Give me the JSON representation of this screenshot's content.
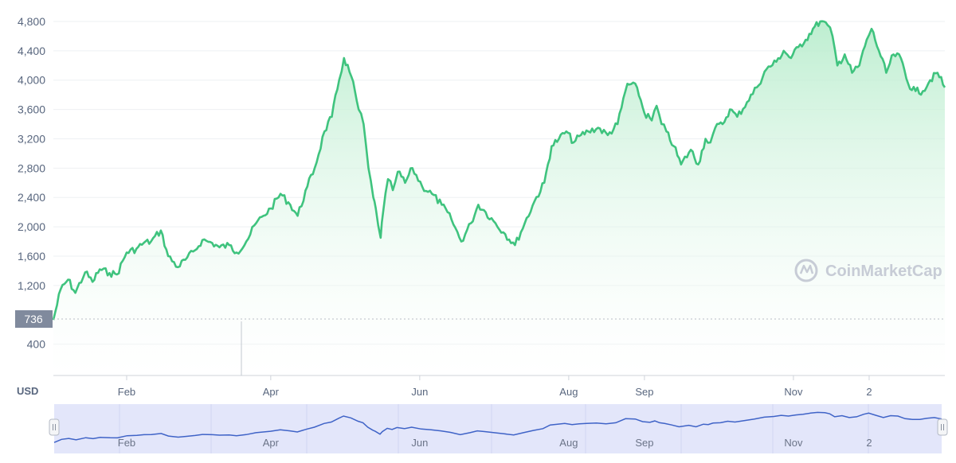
{
  "watermark": "CoinMarketCap",
  "unit_label": "USD",
  "current_badge": "736",
  "colors": {
    "line": "#3fc37e",
    "fill_top": "#b6eccb",
    "grid": "#eef0f3",
    "axis_text": "#58667e",
    "navigator_bg": "#e3e6fa",
    "navigator_line": "#3f63c7"
  },
  "chart_data": {
    "type": "area",
    "title": "",
    "xlabel": "",
    "ylabel": "USD",
    "ylim": [
      0,
      5000
    ],
    "yticks": [
      "400",
      "1,200",
      "1,600",
      "2,000",
      "2,400",
      "2,800",
      "3,200",
      "3,600",
      "4,000",
      "4,400",
      "4,800"
    ],
    "ytick_values": [
      400,
      1200,
      1600,
      2000,
      2400,
      2800,
      3200,
      3600,
      4000,
      4400,
      4800
    ],
    "xticks": [
      "Feb",
      "Apr",
      "Jun",
      "Aug",
      "Sep",
      "Nov",
      "2"
    ],
    "xtick_days": [
      31,
      90,
      151,
      212,
      243,
      304,
      335
    ],
    "x_range_days": [
      1,
      366
    ],
    "series": [
      {
        "x": [
          1,
          4,
          7,
          10,
          14,
          17,
          20,
          24,
          27,
          31,
          35,
          38,
          41,
          45,
          48,
          52,
          55,
          59,
          62,
          66,
          69,
          73,
          76,
          80,
          84,
          87,
          90,
          94,
          98,
          101,
          105,
          108,
          112,
          115,
          118,
          120,
          123,
          126,
          128,
          130,
          132,
          133,
          135,
          136,
          138,
          140,
          142,
          145,
          148,
          152,
          156,
          160,
          164,
          168,
          172,
          175,
          178,
          182,
          186,
          190,
          194,
          198,
          202,
          205,
          208,
          211,
          214,
          217,
          220,
          224,
          228,
          232,
          236,
          240,
          243,
          246,
          248,
          250,
          252,
          255,
          258,
          262,
          265,
          268,
          270,
          272,
          275,
          278,
          281,
          285,
          289,
          293,
          297,
          300,
          303,
          306,
          309,
          312,
          315,
          318,
          320,
          322,
          325,
          328,
          331,
          334,
          336,
          339,
          342,
          345,
          348,
          351,
          354,
          357,
          360,
          363,
          366
        ],
        "values": [
          730,
          1150,
          1280,
          1100,
          1380,
          1250,
          1420,
          1370,
          1350,
          1650,
          1700,
          1780,
          1800,
          1950,
          1600,
          1450,
          1550,
          1680,
          1820,
          1780,
          1720,
          1750,
          1650,
          1800,
          2050,
          2150,
          2250,
          2450,
          2300,
          2150,
          2550,
          2800,
          3300,
          3500,
          4000,
          4300,
          4050,
          3600,
          3400,
          2800,
          2400,
          2250,
          1850,
          2200,
          2650,
          2500,
          2750,
          2600,
          2800,
          2550,
          2450,
          2300,
          2100,
          1800,
          2050,
          2300,
          2200,
          2050,
          1900,
          1750,
          2050,
          2350,
          2600,
          3100,
          3200,
          3300,
          3150,
          3250,
          3300,
          3350,
          3250,
          3400,
          3950,
          3900,
          3550,
          3450,
          3650,
          3400,
          3300,
          3100,
          2850,
          3050,
          2850,
          3200,
          3150,
          3350,
          3400,
          3600,
          3500,
          3700,
          3900,
          4150,
          4250,
          4400,
          4300,
          4450,
          4550,
          4700,
          4800,
          4750,
          4600,
          4200,
          4350,
          4100,
          4200,
          4550,
          4700,
          4400,
          4100,
          4350,
          4300,
          3950,
          3850,
          3850,
          4000,
          4100,
          3900
        ]
      }
    ]
  }
}
